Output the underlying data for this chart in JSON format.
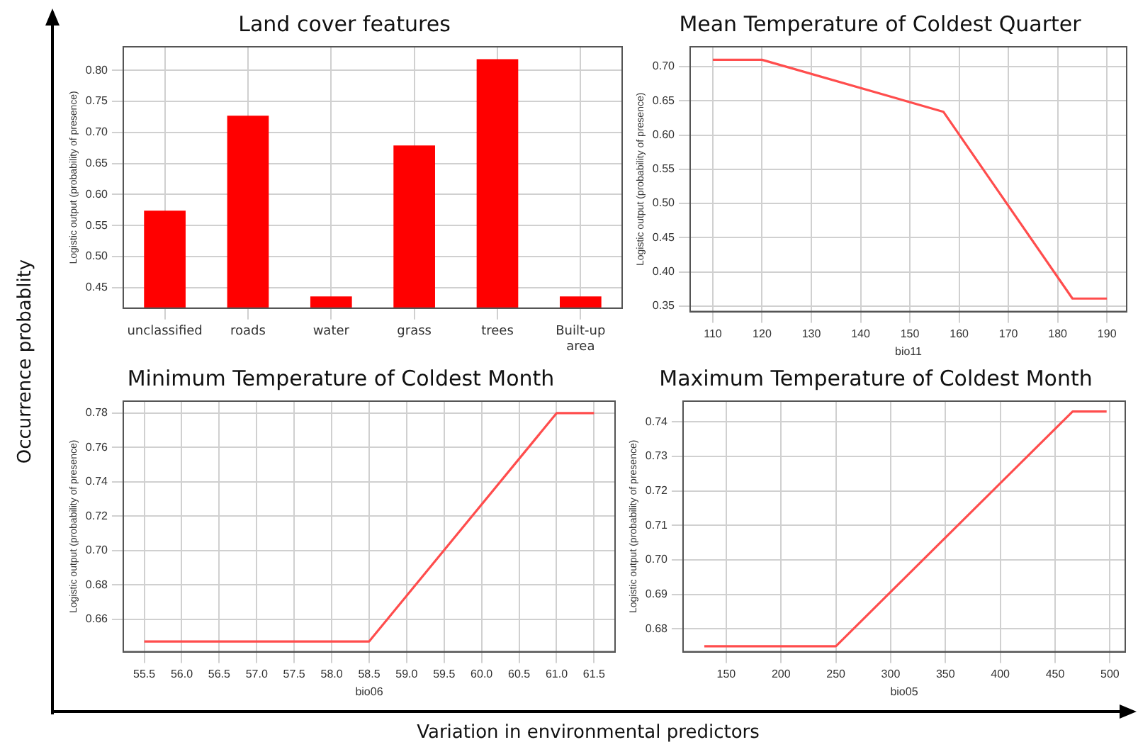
{
  "chart_data": [
    {
      "type": "bar",
      "title": "Land cover features",
      "ylabel": "Logistic output (probability of presence)",
      "categories": [
        "unclassified",
        "roads",
        "water",
        "grass",
        "trees",
        "Built-up area"
      ],
      "values": [
        0.574,
        0.727,
        0.436,
        0.679,
        0.818,
        0.436
      ],
      "color": "#ff0000",
      "ylim": [
        0.417,
        0.838
      ],
      "yticks": [
        0.45,
        {
          "value": 0.5,
          "label": "0.50"
        },
        0.55,
        {
          "value": 0.6,
          "label": "0.60"
        },
        0.65,
        {
          "value": 0.7,
          "label": "0.70"
        },
        0.75,
        {
          "value": 0.8,
          "label": "0.80"
        }
      ],
      "grid": true,
      "annotations": [
        "Occurrence probablity",
        "Variation in environmental predictors"
      ]
    },
    {
      "type": "line",
      "title": "Mean Temperature of Coldest Quarter",
      "xlabel": "bio11",
      "ylabel": "Logistic output (probability of presence)",
      "x": [
        110,
        120,
        156.8,
        183,
        190
      ],
      "values": [
        0.71,
        0.71,
        0.634,
        0.361,
        0.361
      ],
      "color": "#ff4d4d",
      "xlim": [
        105.4,
        194
      ],
      "xticks": [
        110,
        120,
        130,
        140,
        150,
        160,
        170,
        180,
        190
      ],
      "ylim": [
        0.342,
        0.729
      ],
      "yticks": [
        0.35,
        {
          "value": 0.4,
          "label": "0.40"
        },
        0.45,
        {
          "value": 0.5,
          "label": "0.50"
        },
        0.55,
        {
          "value": 0.6,
          "label": "0.60"
        },
        0.65,
        {
          "value": 0.7,
          "label": "0.70"
        }
      ],
      "grid": true
    },
    {
      "type": "line",
      "title": "Minimum Temperature of Coldest Month",
      "xlabel": "bio06",
      "ylabel": "Logistic output (probability of presence)",
      "x": [
        55.5,
        58.5,
        61.0,
        61.5
      ],
      "values": [
        0.647,
        0.647,
        0.78,
        0.78
      ],
      "color": "#ff4d4d",
      "xlim": [
        55.22,
        61.78
      ],
      "xticks": [
        {
          "value": 55.5,
          "label": "55.5"
        },
        {
          "value": 56,
          "label": "56.0"
        },
        {
          "value": 56.5,
          "label": "56.5"
        },
        {
          "value": 57,
          "label": "57.0"
        },
        {
          "value": 57.5,
          "label": "57.5"
        },
        {
          "value": 58,
          "label": "58.0"
        },
        {
          "value": 58.5,
          "label": "58.5"
        },
        {
          "value": 59,
          "label": "59.0"
        },
        {
          "value": 59.5,
          "label": "59.5"
        },
        {
          "value": 60,
          "label": "60.0"
        },
        {
          "value": 60.5,
          "label": "60.5"
        },
        {
          "value": 61,
          "label": "61.0"
        },
        {
          "value": 61.5,
          "label": "61.5"
        }
      ],
      "ylim": [
        0.641,
        0.787
      ],
      "yticks": [
        {
          "value": 0.66,
          "label": "0.66"
        },
        {
          "value": 0.68,
          "label": "0.68"
        },
        {
          "value": 0.7,
          "label": "0.70"
        },
        {
          "value": 0.72,
          "label": "0.72"
        },
        {
          "value": 0.74,
          "label": "0.74"
        },
        {
          "value": 0.76,
          "label": "0.76"
        },
        {
          "value": 0.78,
          "label": "0.78"
        }
      ],
      "grid": true
    },
    {
      "type": "line",
      "title": "Maximum Temperature of Coldest Month",
      "xlabel": "bio05",
      "ylabel": "Logistic output (probability of presence)",
      "x": [
        130,
        250,
        466,
        497
      ],
      "values": [
        0.675,
        0.675,
        0.743,
        0.743
      ],
      "color": "#ff4d4d",
      "xlim": [
        110.6,
        514
      ],
      "xticks": [
        150,
        200,
        250,
        300,
        350,
        400,
        450,
        500
      ],
      "ylim": [
        0.6734,
        0.746
      ],
      "yticks": [
        0.68,
        0.69,
        {
          "value": 0.7,
          "label": "0.70"
        },
        0.71,
        0.72,
        0.73,
        0.74
      ],
      "grid": true
    }
  ]
}
